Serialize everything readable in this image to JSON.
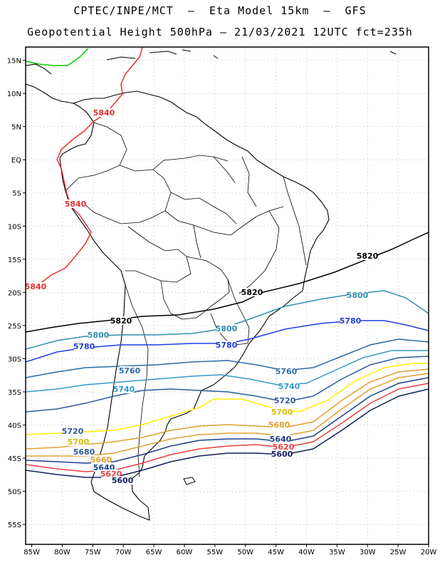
{
  "title": {
    "line1": "CPTEC/INPE/MCT  –  Eta Model 15km  –  GFS",
    "line2": "Geopotential Height 500hPa – 21/03/2021 12UTC fct=235h"
  },
  "axes": {
    "lon_labels": [
      "85W",
      "80W",
      "75W",
      "70W",
      "65W",
      "60W",
      "55W",
      "50W",
      "45W",
      "40W",
      "35W",
      "30W",
      "25W",
      "20W"
    ],
    "lat_labels": [
      "15N",
      "10N",
      "5N",
      "EQ",
      "5S",
      "10S",
      "15S",
      "20S",
      "25S",
      "30S",
      "35S",
      "40S",
      "45S",
      "50S",
      "55S"
    ],
    "lon_range": [
      -86,
      -20
    ],
    "lat_range": [
      17,
      -58
    ]
  },
  "contours": [
    {
      "value": "5840",
      "color": "#e8322f"
    },
    {
      "value": "5820",
      "color": "#000000"
    },
    {
      "value": "5800",
      "color": "#2f8fb0"
    },
    {
      "value": "5780",
      "color": "#1f3fe0"
    },
    {
      "value": "5760",
      "color": "#2a6aa8"
    },
    {
      "value": "5740",
      "color": "#3399cc"
    },
    {
      "value": "5720",
      "color": "#2a5c9c"
    },
    {
      "value": "5700",
      "color": "#ffee00"
    },
    {
      "value": "5680",
      "color": "#e0a030"
    },
    {
      "value": "5660",
      "color": "#e0a030"
    },
    {
      "value": "5640",
      "color": "#1a3f8a"
    },
    {
      "value": "5620",
      "color": "#e84040"
    },
    {
      "value": "5600",
      "color": "#102060"
    }
  ],
  "colors": {
    "green_line": "#00cc00",
    "border": "#000000",
    "grid": "#999999"
  }
}
